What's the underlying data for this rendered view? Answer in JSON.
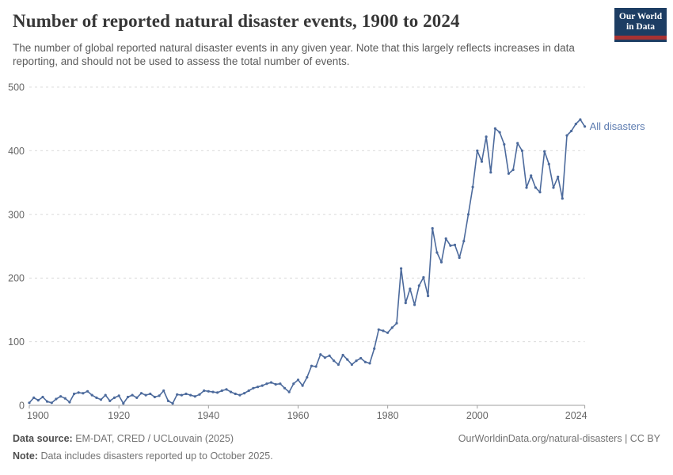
{
  "header": {
    "title": "Number of reported natural disaster events, 1900 to 2024",
    "subtitle": "The number of global reported natural disaster events in any given year. Note that this largely reflects increases in data reporting, and should not be used to assess the total number of events.",
    "logo": {
      "line1": "Our World",
      "line2": "in Data",
      "bg_color": "#1d3d63",
      "bar_color": "#a83232"
    }
  },
  "chart_data": {
    "type": "line",
    "title": "Number of reported natural disaster events, 1900 to 2024",
    "xlabel": "",
    "ylabel": "",
    "x_range": [
      1900,
      2024
    ],
    "x_step": 1,
    "ylim": [
      0,
      500
    ],
    "yticks": [
      0,
      100,
      200,
      300,
      400,
      500
    ],
    "xticks": [
      1900,
      1920,
      1940,
      1960,
      1980,
      2000,
      2024
    ],
    "grid": "horizontal-dashed",
    "legend_position": "label-at-line-end",
    "series": [
      {
        "name": "All disasters",
        "color": "#4c6a9c",
        "label_color": "#5d7cb0",
        "year_start": 1900,
        "values": [
          4,
          12,
          8,
          13,
          6,
          4,
          10,
          14,
          11,
          5,
          18,
          20,
          19,
          22,
          16,
          12,
          9,
          16,
          7,
          12,
          15,
          3,
          13,
          16,
          12,
          19,
          16,
          18,
          13,
          15,
          23,
          7,
          3,
          17,
          16,
          18,
          16,
          14,
          17,
          23,
          22,
          21,
          20,
          23,
          25,
          21,
          18,
          16,
          19,
          23,
          27,
          29,
          31,
          34,
          36,
          33,
          34,
          27,
          21,
          34,
          40,
          31,
          44,
          62,
          61,
          80,
          75,
          78,
          70,
          64,
          79,
          72,
          64,
          70,
          74,
          68,
          66,
          89,
          119,
          117,
          114,
          122,
          129,
          215,
          161,
          183,
          158,
          188,
          201,
          172,
          278,
          240,
          225,
          262,
          251,
          252,
          232,
          258,
          300,
          343,
          400,
          383,
          422,
          366,
          435,
          429,
          410,
          364,
          370,
          412,
          400,
          342,
          361,
          342,
          335,
          399,
          379,
          342,
          359,
          325,
          424,
          431,
          442,
          449,
          438
        ]
      }
    ]
  },
  "footer": {
    "source_label": "Data source:",
    "source": "EM-DAT, CRED / UCLouvain (2025)",
    "note_label": "Note:",
    "note": "Data includes disasters reported up to October 2025.",
    "link": "OurWorldinData.org/natural-disasters | CC BY"
  }
}
